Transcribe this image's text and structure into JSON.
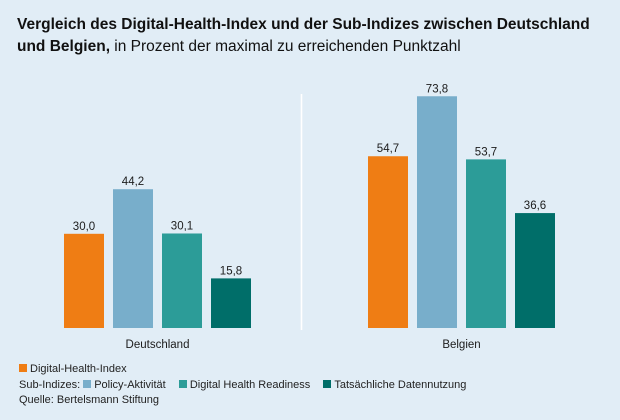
{
  "title": {
    "bold": "Vergleich des Digital-Health-Index und der Sub-Indizes zwischen Deutschland und Belgien,",
    "normal": " in Prozent der maximal zu erreichenden Punktzahl"
  },
  "legend": {
    "index_label": "Digital-Health-Index",
    "sub_prefix": "Sub-Indizes:",
    "sub_items": [
      "Policy-Aktivität",
      "Digital Health Readiness",
      "Tatsächliche Datennutzung"
    ],
    "source": "Quelle: Bertelsmann Stiftung"
  },
  "chart_data": {
    "type": "bar",
    "title": "Vergleich des Digital-Health-Index und der Sub-Indizes zwischen Deutschland und Belgien, in Prozent der maximal zu erreichenden Punktzahl",
    "categories": [
      "Deutschland",
      "Belgien"
    ],
    "series": [
      {
        "name": "Digital-Health-Index",
        "color": "#ef7d14",
        "values": [
          30.0,
          54.7
        ],
        "labels": [
          "30,0",
          "54,7"
        ]
      },
      {
        "name": "Policy-Aktivität",
        "color": "#78aecb",
        "values": [
          44.2,
          73.8
        ],
        "labels": [
          "44,2",
          "73,8"
        ]
      },
      {
        "name": "Digital Health Readiness",
        "color": "#2c9c98",
        "values": [
          30.1,
          53.7
        ],
        "labels": [
          "30,1",
          "53,7"
        ]
      },
      {
        "name": "Tatsächliche Datennutzung",
        "color": "#006e69",
        "values": [
          15.8,
          36.6
        ],
        "labels": [
          "15,8",
          "36,6"
        ]
      }
    ],
    "xlabel": "",
    "ylabel": "",
    "ylim": [
      0,
      100
    ],
    "grid": false,
    "legend_position": "bottom-left",
    "source": "Bertelsmann Stiftung"
  }
}
